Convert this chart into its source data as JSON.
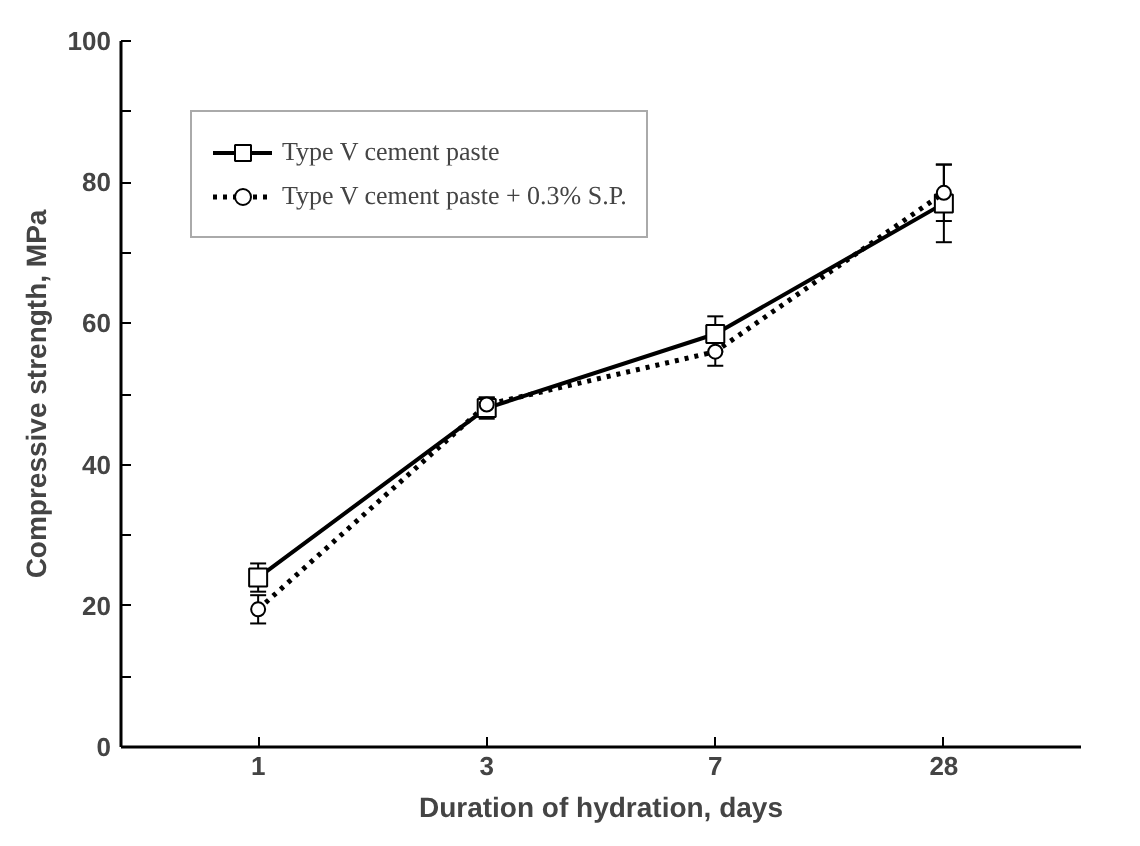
{
  "chart_data": {
    "type": "line",
    "xlabel": "Duration of hydration, days",
    "ylabel": "Compressive strength, MPa",
    "categories": [
      "1",
      "3",
      "7",
      "28"
    ],
    "series": [
      {
        "name": "Type V cement paste",
        "color": "#000000",
        "values": [
          24,
          48,
          58.5,
          77
        ],
        "errors": [
          2,
          1.5,
          2.5,
          5.5
        ],
        "marker": "square",
        "line_style": "solid"
      },
      {
        "name": "Type V cement paste + 0.3% S.P.",
        "color": "#000000",
        "values": [
          19.5,
          48.5,
          56,
          78.5
        ],
        "errors": [
          2,
          1,
          2,
          4
        ],
        "marker": "circle",
        "line_style": "dotted"
      }
    ],
    "ylim": [
      0,
      100
    ],
    "yticks": [
      0,
      {
        "value": 10,
        "label": null
      },
      20,
      {
        "value": 30,
        "label": null
      },
      40,
      {
        "value": 50,
        "label": null
      },
      60,
      {
        "value": 70,
        "label": null
      },
      80,
      {
        "value": 90,
        "label": null
      },
      100
    ],
    "grid": false,
    "legend": "top left"
  }
}
